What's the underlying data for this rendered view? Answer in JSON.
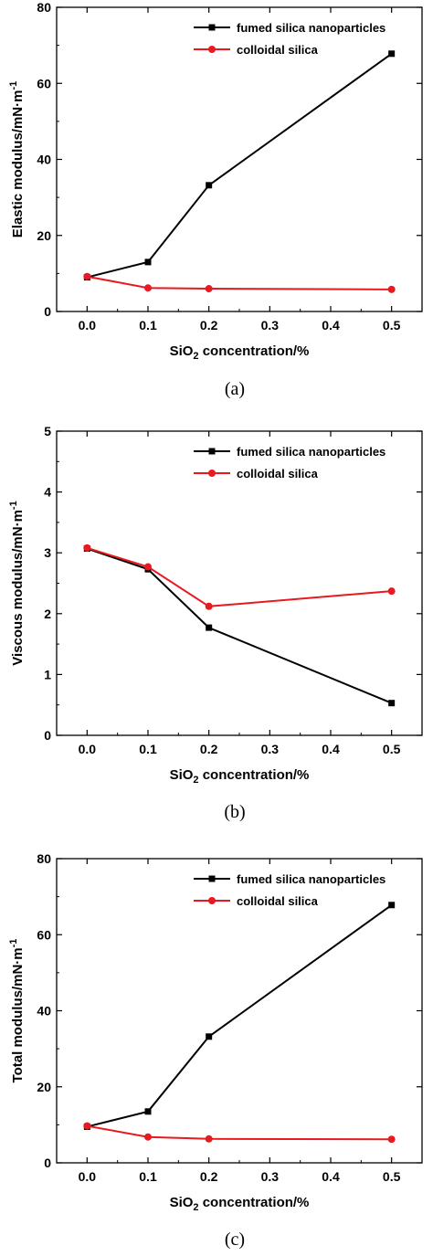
{
  "chart_data": [
    {
      "type": "line",
      "panel_label": "(a)",
      "xlabel": "SiO2 concentration/%",
      "ylabel": "Elastic modulus/mN·m-1",
      "x": [
        0.0,
        0.1,
        0.2,
        0.5
      ],
      "xlim": [
        -0.05,
        0.55
      ],
      "ylim": [
        0,
        80
      ],
      "xticks": [
        "0.0",
        "0.1",
        "0.2",
        "0.3",
        "0.4",
        "0.5"
      ],
      "yticks": [
        "0",
        "20",
        "40",
        "60",
        "80"
      ],
      "legend_position": "top-right",
      "series": [
        {
          "name": "fumed silica nanoparticles",
          "color": "#000000",
          "marker": "square",
          "values": [
            9.0,
            13.0,
            33.2,
            67.8
          ]
        },
        {
          "name": "colloidal silica",
          "color": "#e8191f",
          "marker": "circle",
          "values": [
            9.2,
            6.2,
            6.0,
            5.8
          ]
        }
      ]
    },
    {
      "type": "line",
      "panel_label": "(b)",
      "xlabel": "SiO2 concentration/%",
      "ylabel": "Viscous modulus/mN·m-1",
      "x": [
        0.0,
        0.1,
        0.2,
        0.5
      ],
      "xlim": [
        -0.05,
        0.55
      ],
      "ylim": [
        0,
        5
      ],
      "xticks": [
        "0.0",
        "0.1",
        "0.2",
        "0.3",
        "0.4",
        "0.5"
      ],
      "yticks": [
        "0",
        "1",
        "2",
        "3",
        "4",
        "5"
      ],
      "legend_position": "top-right",
      "series": [
        {
          "name": "fumed silica nanoparticles",
          "color": "#000000",
          "marker": "square",
          "values": [
            3.07,
            2.73,
            1.77,
            0.53
          ]
        },
        {
          "name": "colloidal silica",
          "color": "#e8191f",
          "marker": "circle",
          "values": [
            3.08,
            2.77,
            2.12,
            2.37
          ]
        }
      ]
    },
    {
      "type": "line",
      "panel_label": "(c)",
      "xlabel": "SiO2 concentration/%",
      "ylabel": "Total modulus/mN·m-1",
      "x": [
        0.0,
        0.1,
        0.2,
        0.5
      ],
      "xlim": [
        -0.05,
        0.55
      ],
      "ylim": [
        0,
        80
      ],
      "xticks": [
        "0.0",
        "0.1",
        "0.2",
        "0.3",
        "0.4",
        "0.5"
      ],
      "yticks": [
        "0",
        "20",
        "40",
        "60",
        "80"
      ],
      "legend_position": "top-right",
      "series": [
        {
          "name": "fumed silica nanoparticles",
          "color": "#000000",
          "marker": "square",
          "values": [
            9.5,
            13.5,
            33.2,
            67.8
          ]
        },
        {
          "name": "colloidal silica",
          "color": "#e8191f",
          "marker": "circle",
          "values": [
            9.7,
            6.8,
            6.3,
            6.2
          ]
        }
      ]
    }
  ]
}
